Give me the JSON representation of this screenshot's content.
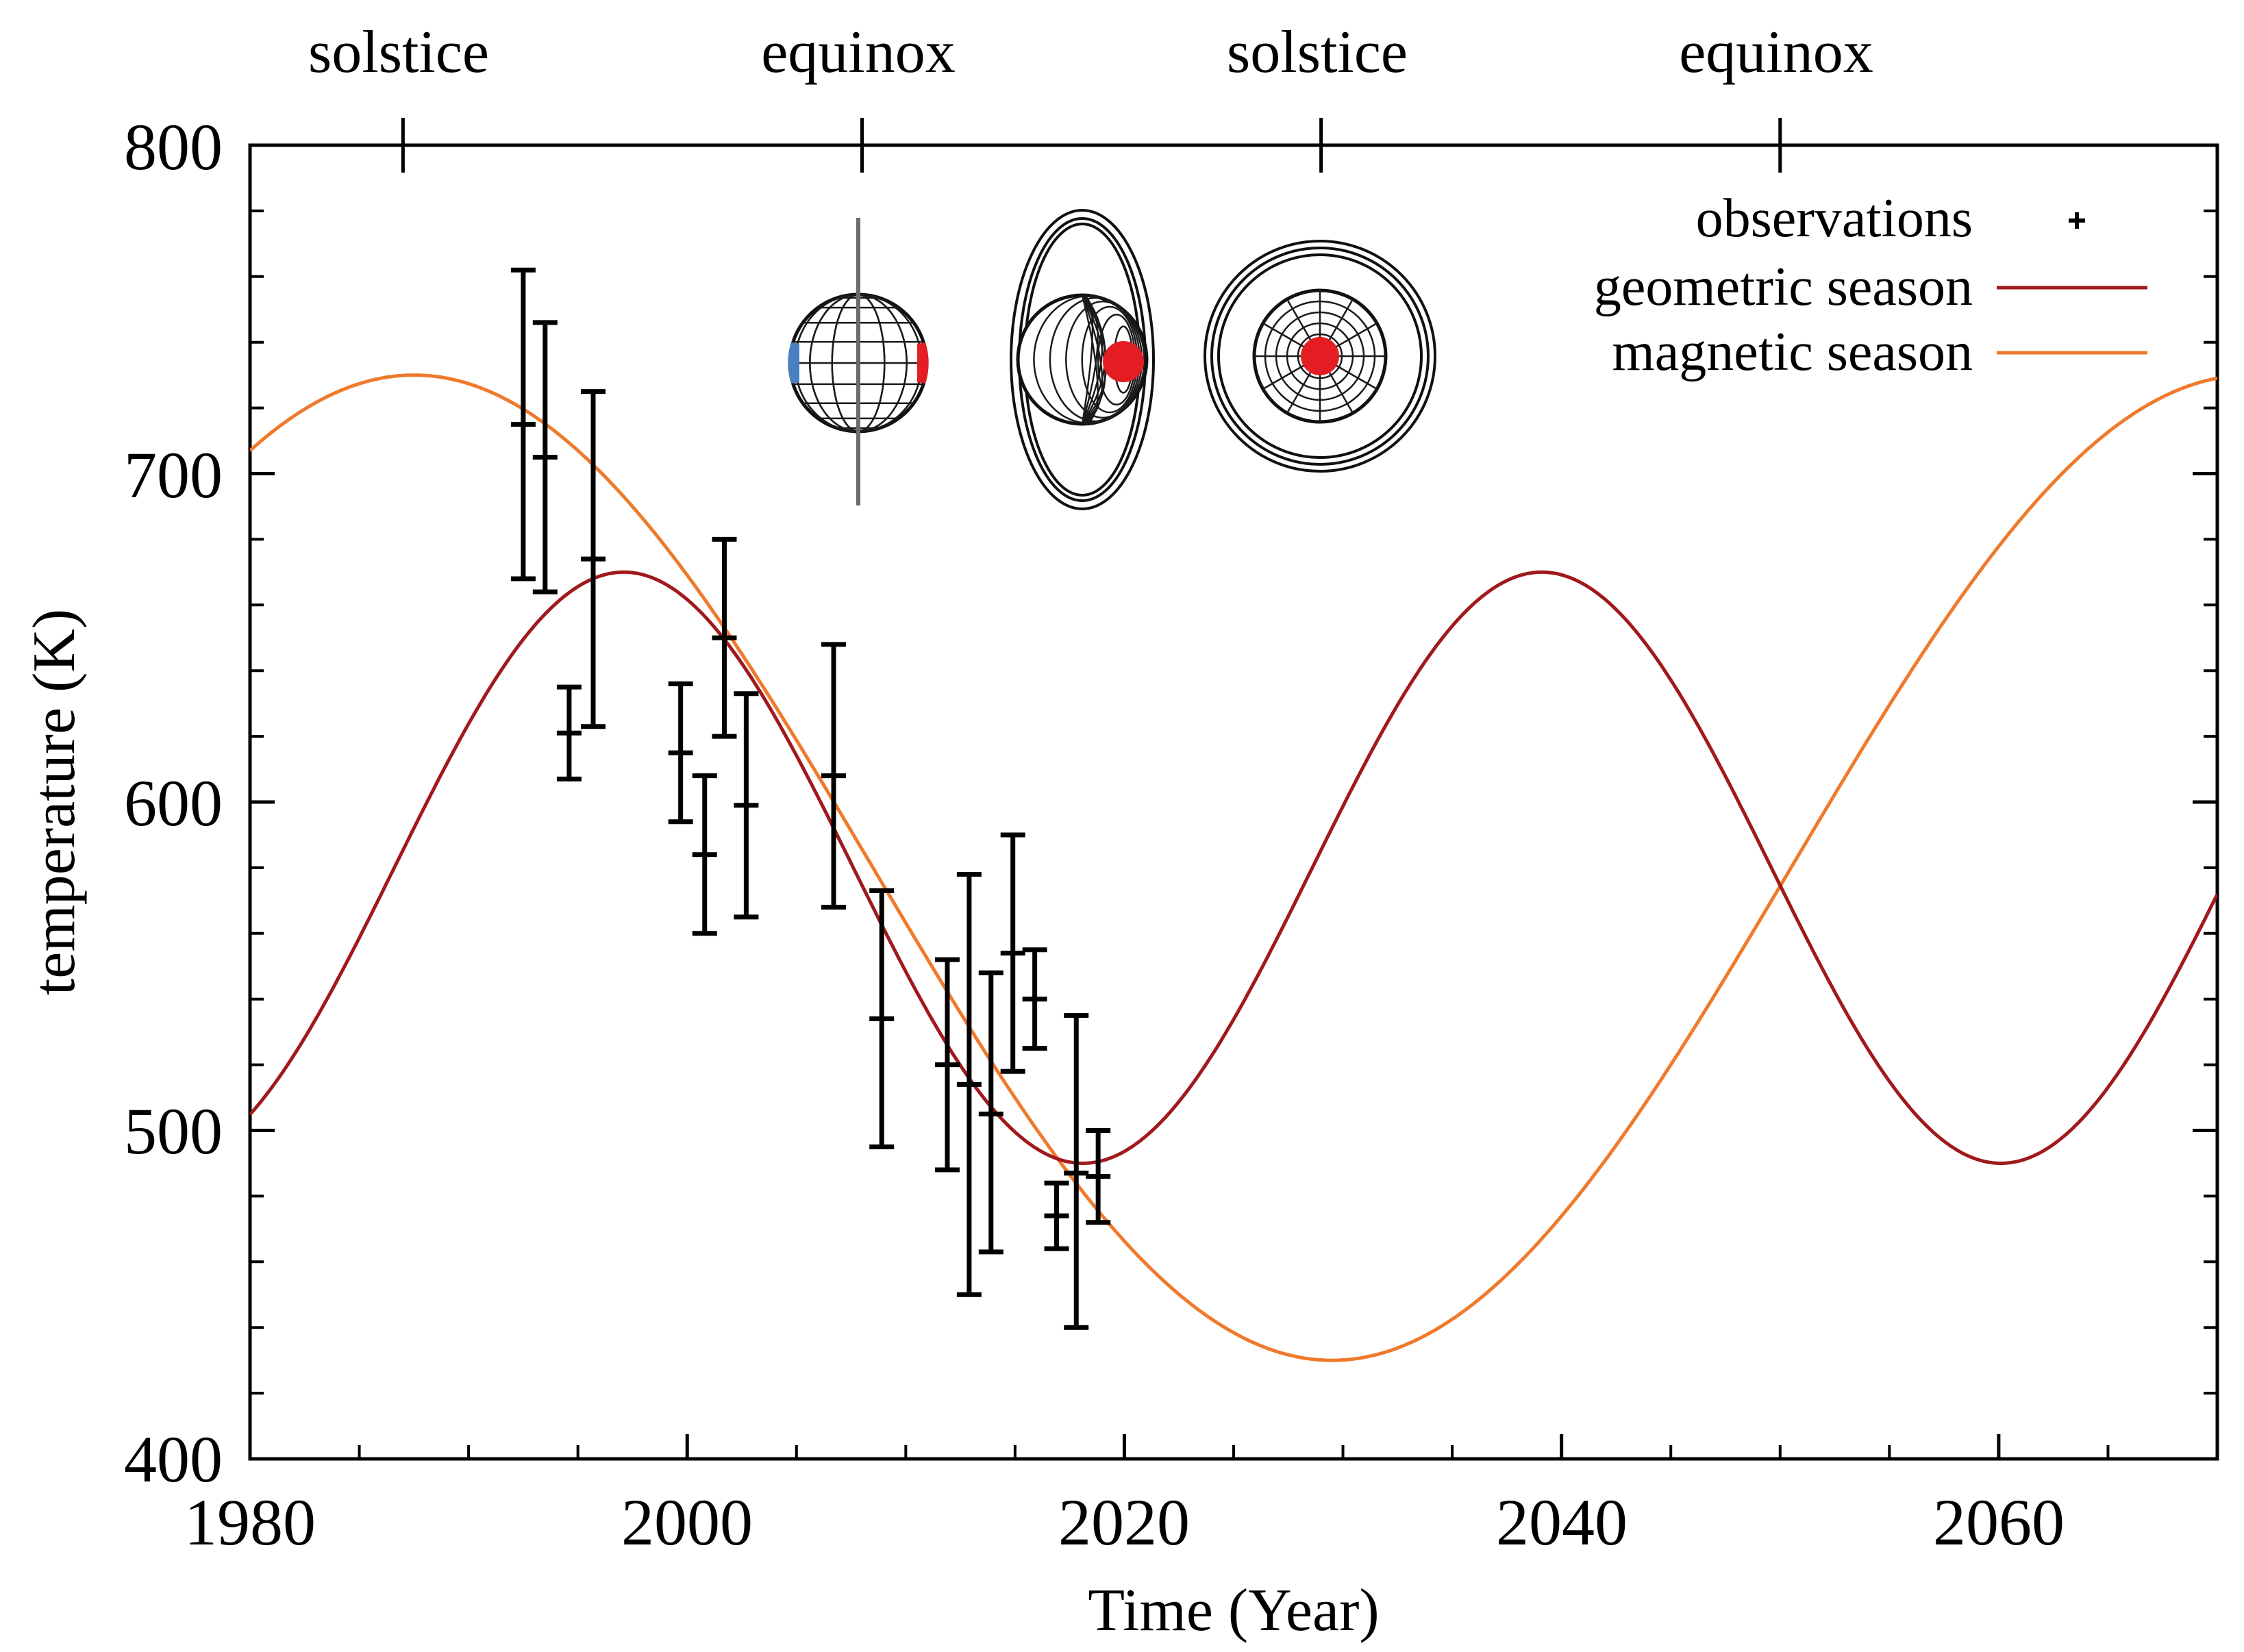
{
  "chart_data": {
    "type": "line",
    "xlabel": "Time (Year)",
    "ylabel": "temperature (K)",
    "xlim": [
      1980,
      2070
    ],
    "ylim": [
      400,
      800
    ],
    "x_ticks": [
      1980,
      2000,
      2020,
      2040,
      2060
    ],
    "y_ticks": [
      400,
      500,
      600,
      700,
      800
    ],
    "season_markers": [
      {
        "label": "solstice",
        "x": 1987
      },
      {
        "label": "equinox",
        "x": 2008
      },
      {
        "label": "solstice",
        "x": 2029
      },
      {
        "label": "equinox",
        "x": 2050
      }
    ],
    "legend": {
      "position": "top-right",
      "entries": [
        {
          "label": "observations",
          "symbol": "+"
        },
        {
          "label": "geometric season",
          "color": "#a0191c"
        },
        {
          "label": "magnetic season",
          "color": "#ef7a2c"
        }
      ]
    },
    "series": [
      {
        "name": "geometric season",
        "color": "#a0191c",
        "model": {
          "mean": 580,
          "amplitude": 90,
          "period": 42,
          "peak_year": 1997.1
        }
      },
      {
        "name": "magnetic season",
        "color": "#ef7a2c",
        "model": {
          "mean": 580,
          "amplitude": 150,
          "period": 84,
          "peak_year": 1987.5
        }
      }
    ],
    "observations": [
      {
        "x": 1992.5,
        "y": 715,
        "low": 668,
        "high": 762
      },
      {
        "x": 1993.5,
        "y": 705,
        "low": 664,
        "high": 746
      },
      {
        "x": 1994.6,
        "y": 621,
        "low": 607,
        "high": 635
      },
      {
        "x": 1995.7,
        "y": 674,
        "low": 623,
        "high": 725
      },
      {
        "x": 1999.7,
        "y": 615,
        "low": 594,
        "high": 636
      },
      {
        "x": 2000.8,
        "y": 584,
        "low": 560,
        "high": 608
      },
      {
        "x": 2001.7,
        "y": 650,
        "low": 620,
        "high": 680
      },
      {
        "x": 2002.7,
        "y": 599,
        "low": 565,
        "high": 633
      },
      {
        "x": 2006.7,
        "y": 608,
        "low": 568,
        "high": 648
      },
      {
        "x": 2008.9,
        "y": 534,
        "low": 495,
        "high": 573
      },
      {
        "x": 2011.9,
        "y": 520,
        "low": 488,
        "high": 552
      },
      {
        "x": 2012.9,
        "y": 514,
        "low": 450,
        "high": 578
      },
      {
        "x": 2013.9,
        "y": 505,
        "low": 463,
        "high": 548
      },
      {
        "x": 2014.9,
        "y": 554,
        "low": 518,
        "high": 590
      },
      {
        "x": 2015.9,
        "y": 540,
        "low": 525,
        "high": 555
      },
      {
        "x": 2016.9,
        "y": 474,
        "low": 464,
        "high": 484
      },
      {
        "x": 2017.8,
        "y": 487,
        "low": 440,
        "high": 535
      },
      {
        "x": 2018.8,
        "y": 486,
        "low": 472,
        "high": 500
      }
    ]
  },
  "icons": [
    {
      "name": "planet-equinox-icon",
      "north_color": "#4a7fc1",
      "south_color": "#e41d23"
    },
    {
      "name": "planet-tilted-icon",
      "pole_color": "#e41d23"
    },
    {
      "name": "planet-solstice-icon",
      "pole_color": "#e41d23"
    }
  ]
}
